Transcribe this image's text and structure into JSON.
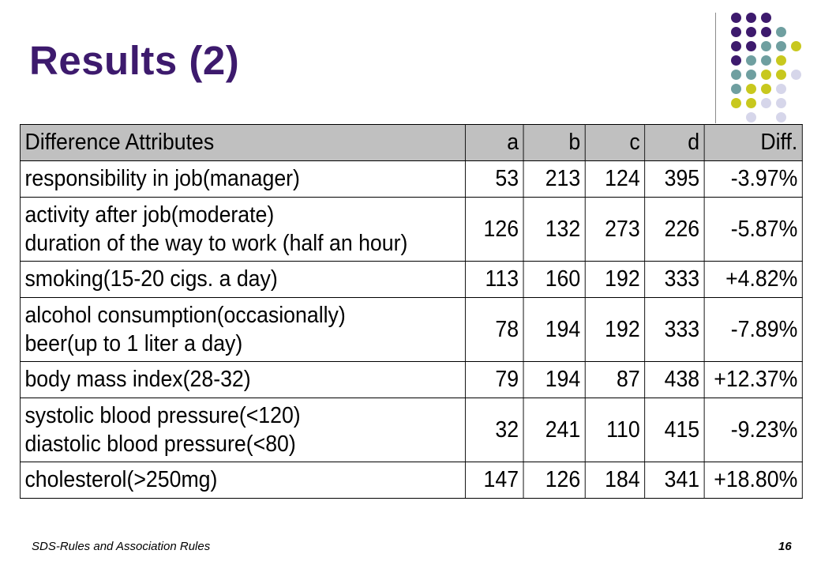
{
  "slide": {
    "title": "Results (2)",
    "footer": "SDS-Rules and Association Rules",
    "page_number": "16"
  },
  "colors": {
    "title": "#3d1a6d",
    "dot_purple": "#3d1a6d",
    "dot_teal": "#6f9fa0",
    "dot_yellow": "#c8c81e",
    "dot_lavender": "#d6d6ea",
    "header_fill": "#c0c0c0"
  },
  "table": {
    "headers": [
      "Difference Attributes",
      "a",
      "b",
      "c",
      "d",
      "Diff."
    ],
    "rows": [
      {
        "attr": [
          "responsibility in job(manager)"
        ],
        "a": "53",
        "b": "213",
        "c": "124",
        "d": "395",
        "diff": "-3.97%"
      },
      {
        "attr": [
          "activity after job(moderate)",
          "duration of the way to work (half an hour)"
        ],
        "a": "126",
        "b": "132",
        "c": "273",
        "d": "226",
        "diff": "-5.87%"
      },
      {
        "attr": [
          "smoking(15-20 cigs. a day)"
        ],
        "a": "113",
        "b": "160",
        "c": "192",
        "d": "333",
        "diff": "+4.82%"
      },
      {
        "attr": [
          "alcohol consumption(occasionally)",
          "beer(up to 1 liter a day)"
        ],
        "a": "78",
        "b": "194",
        "c": "192",
        "d": "333",
        "diff": "-7.89%"
      },
      {
        "attr": [
          "body mass index(28-32)"
        ],
        "a": "79",
        "b": "194",
        "c": "87",
        "d": "438",
        "diff": "+12.37%"
      },
      {
        "attr": [
          "systolic blood pressure(<120)",
          "diastolic blood pressure(<80)"
        ],
        "a": "32",
        "b": "241",
        "c": "110",
        "d": "415",
        "diff": "-9.23%"
      },
      {
        "attr": [
          "cholesterol(>250mg)"
        ],
        "a": "147",
        "b": "126",
        "c": "184",
        "d": "341",
        "diff": "+18.80%"
      }
    ]
  }
}
